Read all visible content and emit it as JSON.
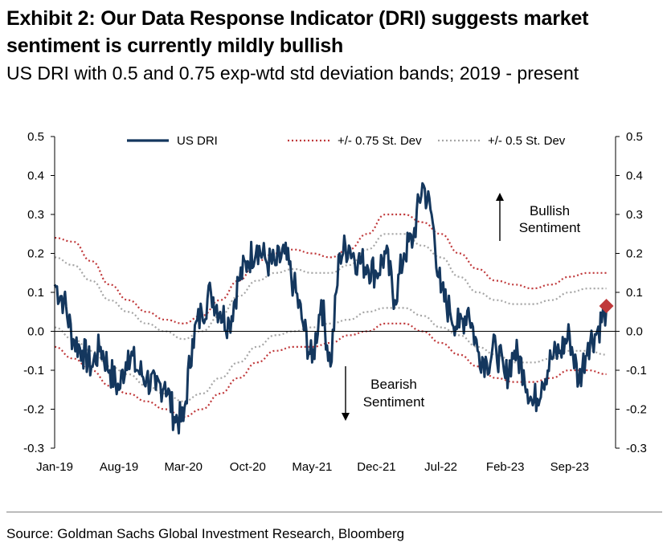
{
  "title": "Exhibit 2: Our Data Response Indicator (DRI) suggests market sentiment is currently mildly bullish",
  "subtitle": "US DRI with 0.5 and 0.75 exp-wtd std deviation bands; 2019 - present",
  "source": "Source: Goldman Sachs Global Investment Research, Bloomberg",
  "chart_data": {
    "type": "line",
    "x_tick_labels": [
      "Jan-19",
      "Aug-19",
      "Mar-20",
      "Oct-20",
      "May-21",
      "Dec-21",
      "Jul-22",
      "Feb-23",
      "Sep-23"
    ],
    "x_range": [
      "2019-01",
      "2024-02"
    ],
    "y_range": [
      -0.3,
      0.5
    ],
    "y_ticks": [
      "0.5",
      "0.4",
      "0.3",
      "0.2",
      "0.1",
      "0.0",
      "-0.1",
      "-0.2",
      "-0.3"
    ],
    "legend_placement": "top",
    "legend": [
      "US DRI",
      "+/- 0.75 St. Dev",
      "+/- 0.5 St. Dev"
    ],
    "annotations": {
      "bullish": [
        "Bullish",
        "Sentiment"
      ],
      "bearish": [
        "Bearish",
        "Sentiment"
      ]
    },
    "colors": {
      "dri": "#14375e",
      "band75": "#c0393b",
      "band50": "#a6a6a6",
      "marker": "#c0393b"
    },
    "series": [
      {
        "name": "US DRI",
        "x": [
          "2019-01",
          "2019-02",
          "2019-03",
          "2019-04",
          "2019-05",
          "2019-06",
          "2019-07",
          "2019-08",
          "2019-09",
          "2019-10",
          "2019-11",
          "2019-12",
          "2020-01",
          "2020-02",
          "2020-03",
          "2020-04",
          "2020-05",
          "2020-06",
          "2020-07",
          "2020-08",
          "2020-09",
          "2020-10",
          "2020-11",
          "2020-12",
          "2021-01",
          "2021-02",
          "2021-03",
          "2021-04",
          "2021-05",
          "2021-06",
          "2021-07",
          "2021-08",
          "2021-09",
          "2021-10",
          "2021-11",
          "2021-12",
          "2022-01",
          "2022-02",
          "2022-03",
          "2022-04",
          "2022-05",
          "2022-06",
          "2022-07",
          "2022-08",
          "2022-09",
          "2022-10",
          "2022-11",
          "2022-12",
          "2023-01",
          "2023-02",
          "2023-03",
          "2023-04",
          "2023-05",
          "2023-06",
          "2023-07",
          "2023-08",
          "2023-09",
          "2023-10",
          "2023-11",
          "2023-12",
          "2024-01"
        ],
        "values": [
          0.12,
          0.08,
          -0.02,
          -0.05,
          -0.09,
          -0.04,
          -0.1,
          -0.15,
          -0.05,
          -0.1,
          -0.12,
          -0.15,
          -0.13,
          -0.22,
          -0.23,
          -0.02,
          0.05,
          0.1,
          0.05,
          0.02,
          0.13,
          0.18,
          0.22,
          0.18,
          0.17,
          0.2,
          0.12,
          0.02,
          -0.08,
          0.08,
          -0.09,
          0.2,
          0.22,
          0.18,
          0.17,
          0.15,
          0.2,
          0.08,
          0.2,
          0.24,
          0.38,
          0.3,
          0.1,
          0.05,
          0.01,
          0.06,
          -0.05,
          -0.08,
          -0.04,
          -0.12,
          -0.05,
          -0.1,
          -0.19,
          -0.13,
          -0.07,
          -0.05,
          -0.01,
          -0.13,
          -0.03,
          0.0,
          0.06
        ]
      },
      {
        "name": "+/- 0.75 St. Dev",
        "x": [
          "2019-01",
          "2019-03",
          "2019-05",
          "2019-07",
          "2019-09",
          "2019-11",
          "2020-01",
          "2020-03",
          "2020-05",
          "2020-07",
          "2020-09",
          "2020-11",
          "2021-01",
          "2021-03",
          "2021-05",
          "2021-07",
          "2021-09",
          "2021-11",
          "2022-01",
          "2022-03",
          "2022-05",
          "2022-07",
          "2022-09",
          "2022-11",
          "2023-01",
          "2023-03",
          "2023-05",
          "2023-07",
          "2023-09",
          "2023-11",
          "2024-01"
        ],
        "upper": [
          0.24,
          0.23,
          0.18,
          0.12,
          0.08,
          0.05,
          0.03,
          0.02,
          0.04,
          0.08,
          0.13,
          0.18,
          0.2,
          0.21,
          0.2,
          0.19,
          0.21,
          0.25,
          0.3,
          0.3,
          0.28,
          0.25,
          0.2,
          0.16,
          0.13,
          0.12,
          0.11,
          0.12,
          0.14,
          0.15,
          0.15
        ],
        "lower": [
          -0.04,
          -0.07,
          -0.1,
          -0.14,
          -0.16,
          -0.18,
          -0.2,
          -0.22,
          -0.2,
          -0.16,
          -0.12,
          -0.08,
          -0.05,
          -0.04,
          -0.04,
          -0.03,
          -0.01,
          0.0,
          0.02,
          0.02,
          0.0,
          -0.03,
          -0.06,
          -0.09,
          -0.12,
          -0.13,
          -0.13,
          -0.12,
          -0.1,
          -0.1,
          -0.11
        ]
      },
      {
        "name": "+/- 0.5 St. Dev",
        "x": [
          "2019-01",
          "2019-03",
          "2019-05",
          "2019-07",
          "2019-09",
          "2019-11",
          "2020-01",
          "2020-03",
          "2020-05",
          "2020-07",
          "2020-09",
          "2020-11",
          "2021-01",
          "2021-03",
          "2021-05",
          "2021-07",
          "2021-09",
          "2021-11",
          "2022-01",
          "2022-03",
          "2022-05",
          "2022-07",
          "2022-09",
          "2022-11",
          "2023-01",
          "2023-03",
          "2023-05",
          "2023-07",
          "2023-09",
          "2023-11",
          "2024-01"
        ],
        "upper": [
          0.19,
          0.17,
          0.13,
          0.08,
          0.05,
          0.02,
          0.0,
          -0.02,
          0.0,
          0.04,
          0.09,
          0.13,
          0.15,
          0.16,
          0.15,
          0.15,
          0.17,
          0.21,
          0.25,
          0.25,
          0.22,
          0.19,
          0.14,
          0.1,
          0.08,
          0.07,
          0.07,
          0.08,
          0.1,
          0.11,
          0.11
        ],
        "lower": [
          0.01,
          -0.02,
          -0.05,
          -0.09,
          -0.11,
          -0.14,
          -0.16,
          -0.18,
          -0.16,
          -0.12,
          -0.08,
          -0.04,
          -0.01,
          0.0,
          0.01,
          0.02,
          0.03,
          0.05,
          0.06,
          0.06,
          0.04,
          0.01,
          -0.01,
          -0.04,
          -0.06,
          -0.08,
          -0.08,
          -0.07,
          -0.05,
          -0.05,
          -0.06
        ]
      }
    ],
    "latest_point": {
      "x": "2024-01",
      "y": 0.065
    }
  }
}
